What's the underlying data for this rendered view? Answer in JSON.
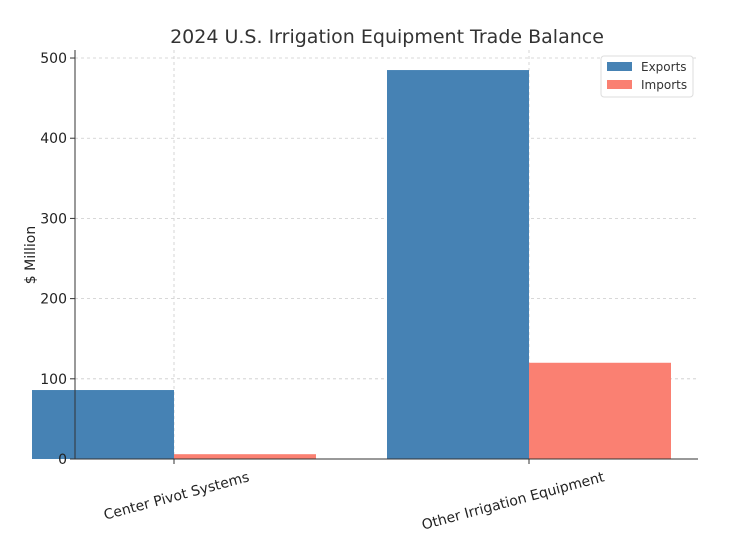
{
  "chart_data": {
    "type": "bar",
    "title": "2024 U.S. Irrigation Equipment Trade Balance",
    "xlabel": "",
    "ylabel": "$ Million",
    "categories": [
      "Center Pivot Systems",
      "Other Irrigation Equipment"
    ],
    "series": [
      {
        "name": "Exports",
        "values": [
          86,
          485
        ],
        "color": "#4682b4"
      },
      {
        "name": "Imports",
        "values": [
          6,
          120
        ],
        "color": "#fa8072"
      }
    ],
    "ylim": [
      0,
      510
    ],
    "yticks": [
      0,
      100,
      200,
      300,
      400,
      500
    ],
    "grid": true,
    "legend": "top-right"
  }
}
